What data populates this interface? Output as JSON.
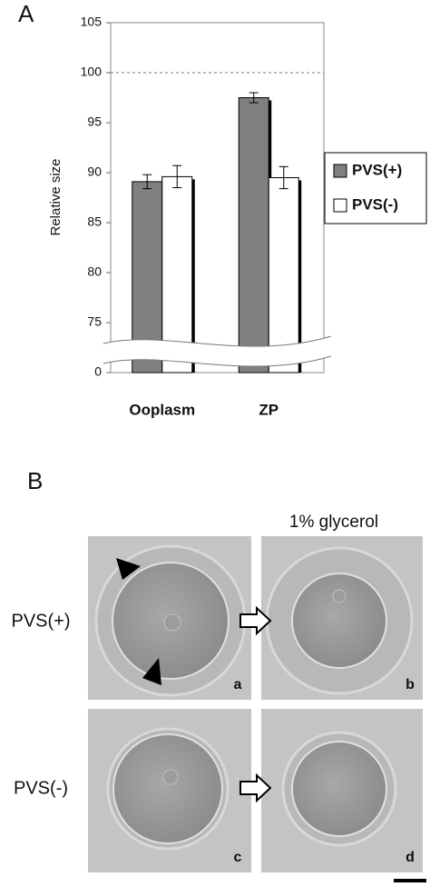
{
  "panel_a_label": "A",
  "chart_data": {
    "type": "bar",
    "ylabel": "Relative size",
    "categories": [
      "Ooplasm",
      "ZP"
    ],
    "series": [
      {
        "name": "PVS(+)",
        "color": "#808080",
        "values": [
          89.1,
          97.5
        ],
        "errors": [
          0.7,
          0.5
        ]
      },
      {
        "name": "PVS(-)",
        "color": "#ffffff",
        "values": [
          89.6,
          89.5
        ],
        "errors": [
          1.1,
          1.1
        ]
      }
    ],
    "ylim": [
      0,
      105
    ],
    "yticks": [
      0,
      75,
      80,
      85,
      90,
      95,
      100,
      105
    ],
    "y_break": [
      0,
      75
    ],
    "reference_line": 100,
    "legend": "right"
  },
  "panel_b": {
    "label": "B",
    "condition": "1% glycerol",
    "rows": [
      "PVS(+)",
      "PVS(-)"
    ],
    "images": [
      "a",
      "b",
      "c",
      "d"
    ]
  }
}
